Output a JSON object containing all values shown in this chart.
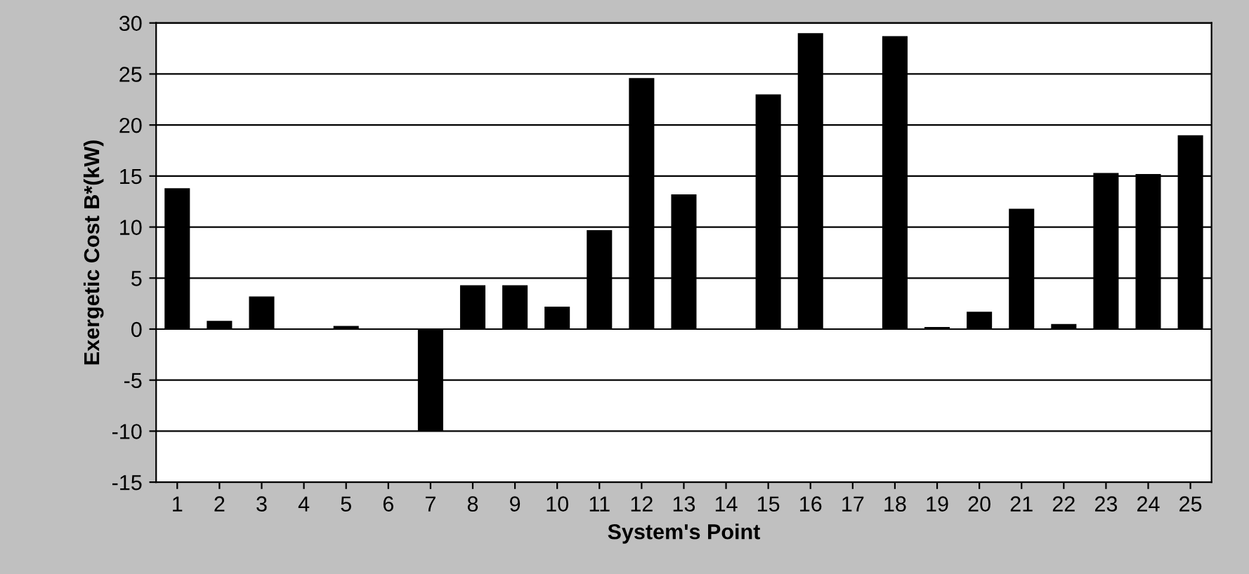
{
  "chart_data": {
    "type": "bar",
    "xlabel": "System's Point",
    "ylabel": "Exergetic Cost B*(kW)",
    "categories": [
      "1",
      "2",
      "3",
      "4",
      "5",
      "6",
      "7",
      "8",
      "9",
      "10",
      "11",
      "12",
      "13",
      "14",
      "15",
      "16",
      "17",
      "18",
      "19",
      "20",
      "21",
      "22",
      "23",
      "24",
      "25"
    ],
    "values": [
      13.8,
      0.8,
      3.2,
      null,
      0.3,
      null,
      -10,
      4.3,
      4.3,
      2.2,
      9.7,
      24.6,
      13.2,
      null,
      23,
      29,
      null,
      28.7,
      0.2,
      1.7,
      11.8,
      0.5,
      15.3,
      15.2,
      19
    ],
    "color": "#000000",
    "ylim": [
      -15,
      30
    ],
    "yticks": [
      -15,
      -10,
      -5,
      0,
      5,
      10,
      15,
      20,
      25,
      30
    ],
    "grid": "y"
  }
}
